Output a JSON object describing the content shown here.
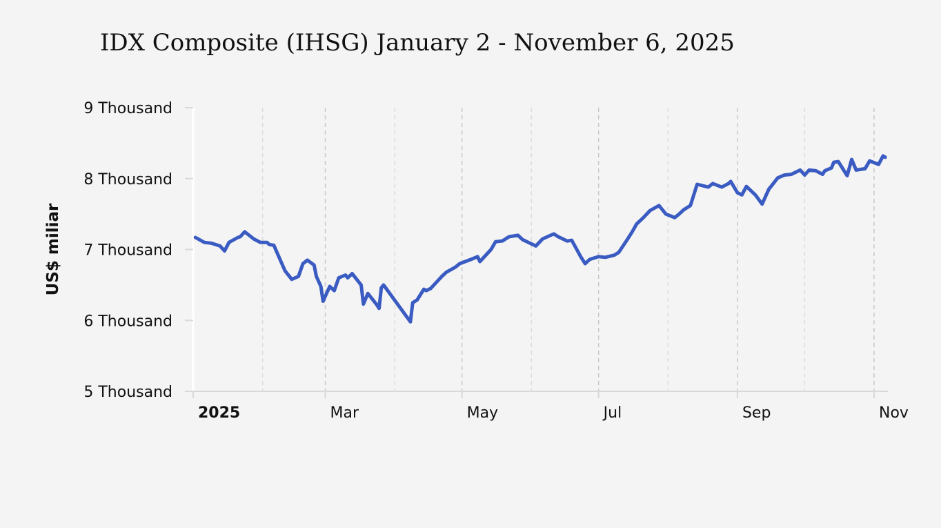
{
  "chart_data": {
    "type": "line",
    "title": "IDX Composite (IHSG) January 2 - November 6, 2025",
    "xlabel": "",
    "ylabel": "US$ miliar",
    "ylim": [
      5000,
      9000
    ],
    "xlim": [
      "2025-01-01",
      "2025-11-07"
    ],
    "y_ticks": [
      {
        "value": 9000,
        "label": "9 Thousand"
      },
      {
        "value": 8000,
        "label": "8 Thousand"
      },
      {
        "value": 7000,
        "label": "7 Thousand"
      },
      {
        "value": 6000,
        "label": "6 Thousand"
      },
      {
        "value": 5000,
        "label": "5 Thousand"
      }
    ],
    "x_ticks": [
      {
        "date": "2025-01-01",
        "label": "2025",
        "bold": true
      },
      {
        "date": "2025-03-01",
        "label": "Mar",
        "bold": false
      },
      {
        "date": "2025-05-01",
        "label": "May",
        "bold": false
      },
      {
        "date": "2025-07-01",
        "label": "Jul",
        "bold": false
      },
      {
        "date": "2025-09-01",
        "label": "Sep",
        "bold": false
      },
      {
        "date": "2025-11-01",
        "label": "Nov",
        "bold": false
      }
    ],
    "minor_gridlines": [
      "2025-02-01",
      "2025-04-01",
      "2025-06-01",
      "2025-08-01",
      "2025-10-01"
    ],
    "grid": true,
    "line_color": "#3a5bc1",
    "series": [
      {
        "x": [
          "2025-01-02",
          "2025-01-06",
          "2025-01-09",
          "2025-01-13",
          "2025-01-15",
          "2025-01-17",
          "2025-01-21",
          "2025-01-22",
          "2025-01-24",
          "2025-01-28",
          "2025-01-31",
          "2025-02-03",
          "2025-02-04",
          "2025-02-06",
          "2025-02-11",
          "2025-02-14",
          "2025-02-17",
          "2025-02-19",
          "2025-02-21",
          "2025-02-24",
          "2025-02-25",
          "2025-02-27",
          "2025-02-28",
          "2025-03-03",
          "2025-03-05",
          "2025-03-07",
          "2025-03-10",
          "2025-03-11",
          "2025-03-13",
          "2025-03-17",
          "2025-03-18",
          "2025-03-20",
          "2025-03-24",
          "2025-03-25",
          "2025-03-26",
          "2025-03-27",
          "2025-04-08",
          "2025-04-09",
          "2025-04-11",
          "2025-04-14",
          "2025-04-15",
          "2025-04-17",
          "2025-04-22",
          "2025-04-24",
          "2025-04-28",
          "2025-04-30",
          "2025-05-05",
          "2025-05-08",
          "2025-05-09",
          "2025-05-14",
          "2025-05-16",
          "2025-05-19",
          "2025-05-22",
          "2025-05-26",
          "2025-05-28",
          "2025-06-03",
          "2025-06-06",
          "2025-06-11",
          "2025-06-13",
          "2025-06-17",
          "2025-06-19",
          "2025-06-23",
          "2025-06-25",
          "2025-06-27",
          "2025-07-01",
          "2025-07-04",
          "2025-07-08",
          "2025-07-10",
          "2025-07-14",
          "2025-07-16",
          "2025-07-18",
          "2025-07-21",
          "2025-07-24",
          "2025-07-28",
          "2025-07-31",
          "2025-08-04",
          "2025-08-06",
          "2025-08-08",
          "2025-08-11",
          "2025-08-14",
          "2025-08-19",
          "2025-08-21",
          "2025-08-25",
          "2025-08-28",
          "2025-08-29",
          "2025-09-01",
          "2025-09-03",
          "2025-09-05",
          "2025-09-09",
          "2025-09-12",
          "2025-09-15",
          "2025-09-17",
          "2025-09-19",
          "2025-09-22",
          "2025-09-25",
          "2025-09-29",
          "2025-10-01",
          "2025-10-03",
          "2025-10-06",
          "2025-10-09",
          "2025-10-10",
          "2025-10-13",
          "2025-10-14",
          "2025-10-16",
          "2025-10-20",
          "2025-10-22",
          "2025-10-24",
          "2025-10-28",
          "2025-10-30",
          "2025-11-03",
          "2025-11-05",
          "2025-11-06"
        ],
        "y": [
          7170,
          7100,
          7090,
          7050,
          6980,
          7100,
          7170,
          7180,
          7250,
          7150,
          7100,
          7100,
          7070,
          7060,
          6700,
          6580,
          6620,
          6800,
          6850,
          6780,
          6620,
          6480,
          6270,
          6480,
          6420,
          6600,
          6640,
          6600,
          6660,
          6500,
          6230,
          6380,
          6220,
          6170,
          6460,
          6500,
          5980,
          6250,
          6290,
          6440,
          6420,
          6450,
          6620,
          6680,
          6750,
          6800,
          6860,
          6900,
          6830,
          7000,
          7110,
          7120,
          7180,
          7200,
          7140,
          7050,
          7150,
          7220,
          7180,
          7120,
          7130,
          6900,
          6800,
          6860,
          6900,
          6890,
          6920,
          6960,
          7150,
          7250,
          7360,
          7450,
          7550,
          7620,
          7500,
          7450,
          7500,
          7560,
          7620,
          7920,
          7880,
          7930,
          7880,
          7930,
          7960,
          7800,
          7770,
          7890,
          7770,
          7640,
          7850,
          7930,
          8010,
          8050,
          8060,
          8120,
          8050,
          8120,
          8110,
          8060,
          8110,
          8150,
          8230,
          8240,
          8040,
          8270,
          8120,
          8140,
          8250,
          8200,
          8320,
          8300
        ]
      }
    ]
  }
}
